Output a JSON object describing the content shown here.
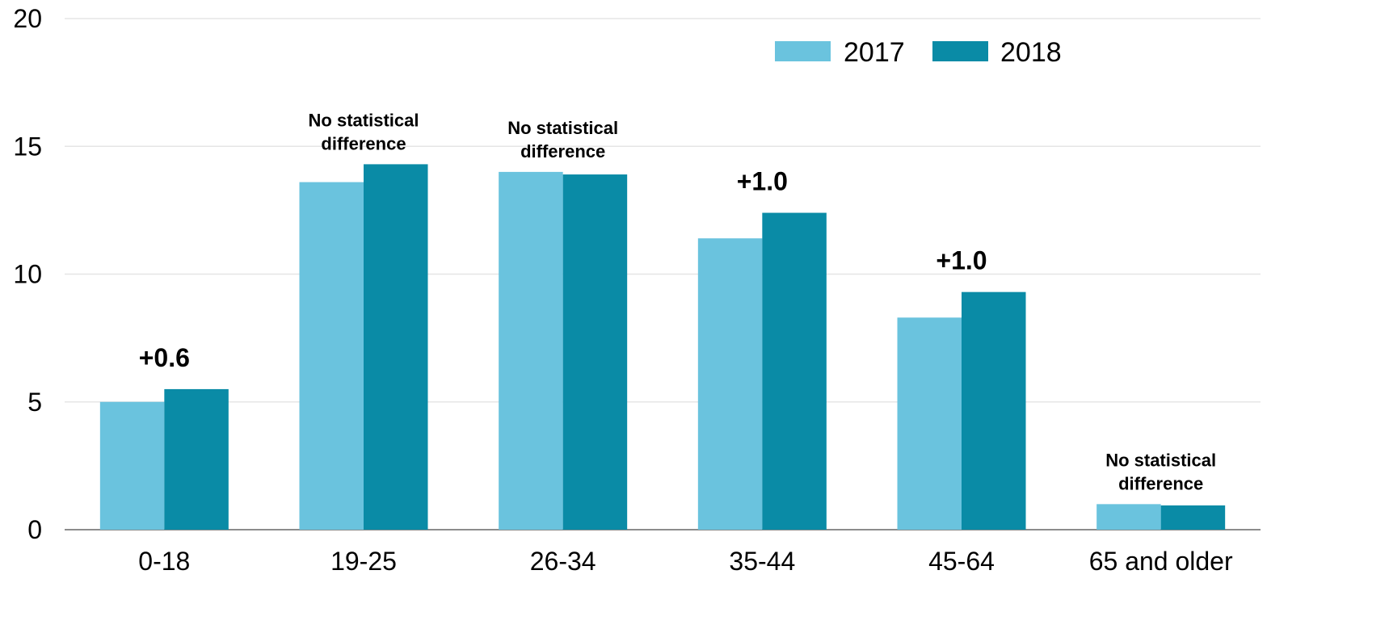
{
  "chart_data": {
    "type": "bar",
    "title": "",
    "xlabel": "",
    "ylabel": "",
    "ylim": [
      0,
      20
    ],
    "yticks": [
      0,
      5,
      10,
      15,
      20
    ],
    "grid": true,
    "legend_position": "top-right",
    "categories": [
      "0-18",
      "19-25",
      "26-34",
      "35-44",
      "45-64",
      "65 and older"
    ],
    "series": [
      {
        "name": "2017",
        "color": "#6ac3de",
        "values": [
          5.0,
          13.6,
          14.0,
          11.4,
          8.3,
          1.0
        ]
      },
      {
        "name": "2018",
        "color": "#0a8ba6",
        "values": [
          5.5,
          14.3,
          13.9,
          12.4,
          9.3,
          0.95
        ]
      }
    ],
    "annotations": [
      {
        "category": "0-18",
        "lines": [
          "+0.6"
        ],
        "style": "big"
      },
      {
        "category": "19-25",
        "lines": [
          "No statistical",
          "difference"
        ],
        "style": "small"
      },
      {
        "category": "26-34",
        "lines": [
          "No statistical",
          "difference"
        ],
        "style": "small"
      },
      {
        "category": "35-44",
        "lines": [
          "+1.0"
        ],
        "style": "big"
      },
      {
        "category": "45-64",
        "lines": [
          "+1.0"
        ],
        "style": "big"
      },
      {
        "category": "65 and older",
        "lines": [
          "No statistical",
          "difference"
        ],
        "style": "small"
      }
    ]
  }
}
